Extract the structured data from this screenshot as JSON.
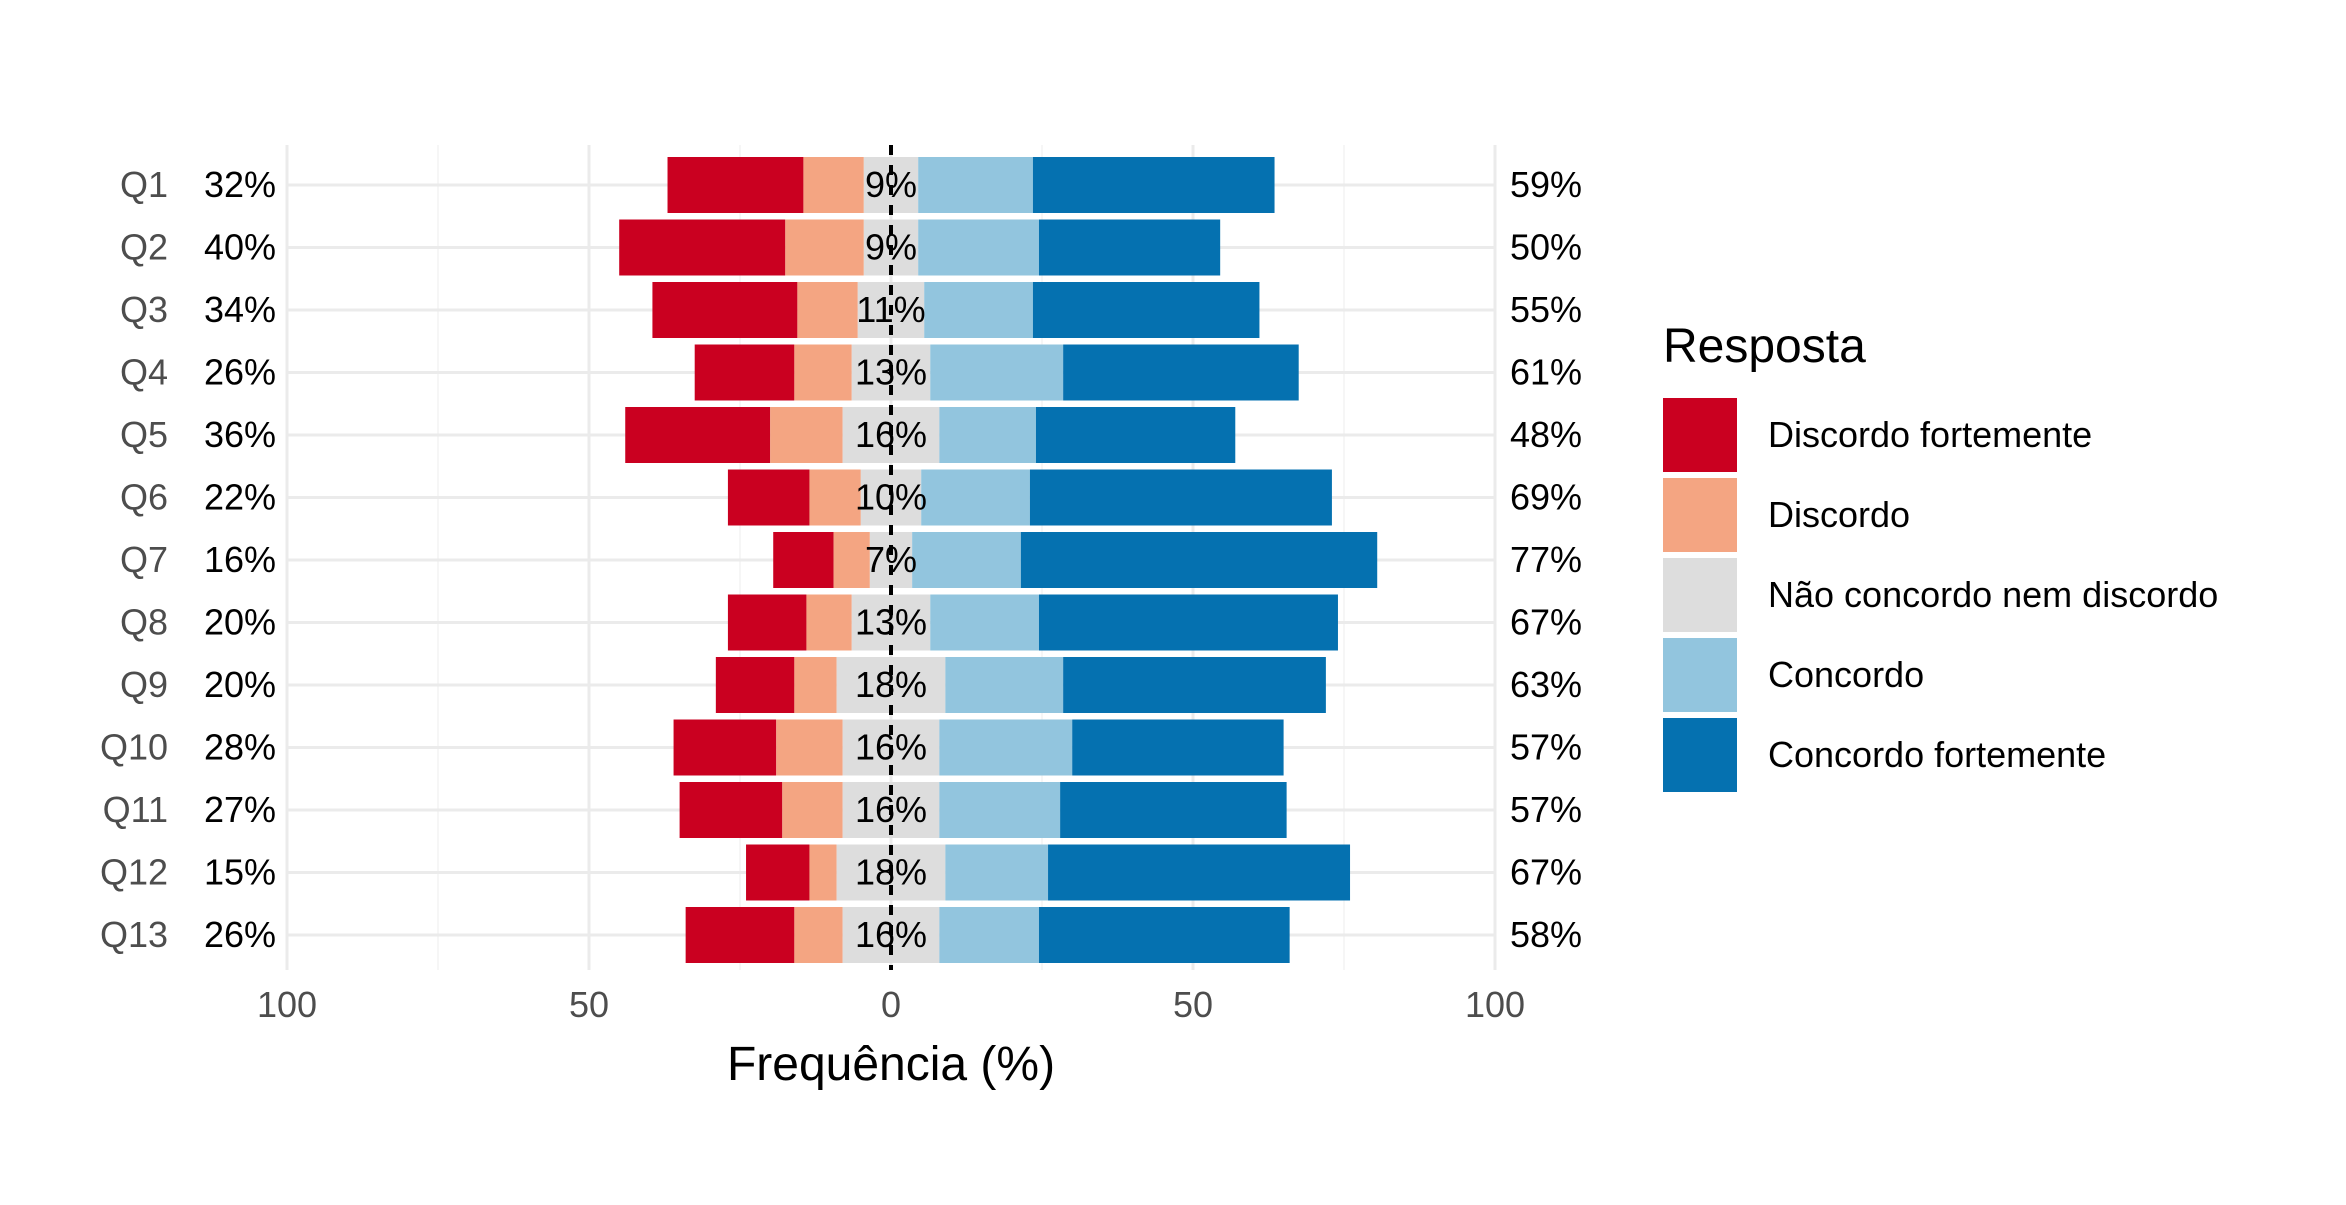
{
  "chart_data": {
    "type": "bar",
    "orientation": "horizontal-diverging",
    "xlabel": "Frequência (%)",
    "xlim": [
      -100,
      100
    ],
    "xticks": [
      -100,
      -50,
      0,
      50,
      100
    ],
    "xtick_labels": [
      "100",
      "50",
      "0",
      "50",
      "100"
    ],
    "grid": true,
    "legend_position": "right",
    "legend_title": "Resposta",
    "categories": [
      "Q1",
      "Q2",
      "Q3",
      "Q4",
      "Q5",
      "Q6",
      "Q7",
      "Q8",
      "Q9",
      "Q10",
      "Q11",
      "Q12",
      "Q13"
    ],
    "series": [
      {
        "name": "Discordo fortemente",
        "color": "#ca0020",
        "values": [
          22.5,
          27.5,
          24,
          16.5,
          24,
          13.5,
          10,
          13,
          13,
          17,
          17,
          10.5,
          18
        ]
      },
      {
        "name": "Discordo",
        "color": "#f4a582",
        "values": [
          10,
          13,
          10,
          9.5,
          12,
          8.5,
          6,
          7.5,
          7,
          11,
          10,
          4.5,
          8
        ]
      },
      {
        "name": "Não concordo nem discordo",
        "color": "#dddddd",
        "values": [
          9,
          9,
          11,
          13,
          16,
          10,
          7,
          13,
          18,
          16,
          16,
          18,
          16
        ]
      },
      {
        "name": "Concordo",
        "color": "#92c5de",
        "values": [
          19,
          20,
          18,
          22,
          16,
          18,
          18,
          18,
          19.5,
          22,
          20,
          17,
          16.5
        ]
      },
      {
        "name": "Concordo fortemente",
        "color": "#0571b0",
        "values": [
          40,
          30,
          37.5,
          39,
          33,
          50,
          59,
          49.5,
          43.5,
          35,
          37.5,
          50,
          41.5
        ]
      }
    ],
    "left_labels": [
      "32%",
      "40%",
      "34%",
      "26%",
      "36%",
      "22%",
      "16%",
      "20%",
      "20%",
      "28%",
      "27%",
      "15%",
      "26%"
    ],
    "center_labels": [
      "9%",
      "9%",
      "11%",
      "13%",
      "16%",
      "10%",
      "7%",
      "13%",
      "18%",
      "16%",
      "16%",
      "18%",
      "16%"
    ],
    "right_labels": [
      "59%",
      "50%",
      "55%",
      "61%",
      "48%",
      "69%",
      "77%",
      "67%",
      "63%",
      "57%",
      "57%",
      "67%",
      "58%"
    ]
  }
}
